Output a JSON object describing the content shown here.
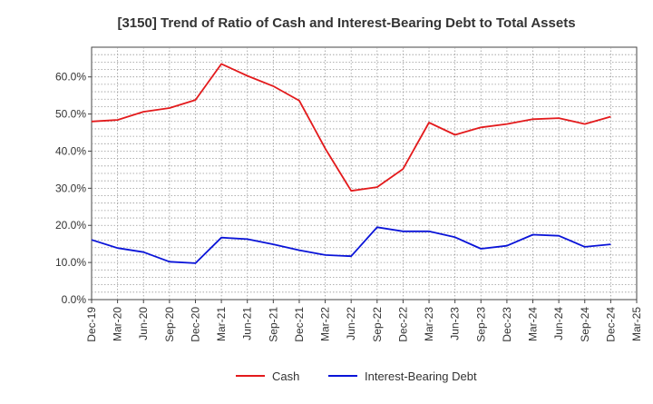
{
  "chart_data": {
    "type": "line",
    "title": "[3150]  Trend of Ratio of Cash and Interest-Bearing Debt to Total Assets",
    "xlabel": "",
    "ylabel": "",
    "x_tick_labels": [
      "Dec-19",
      "Mar-20",
      "Jun-20",
      "Sep-20",
      "Dec-20",
      "Mar-21",
      "Jun-21",
      "Sep-21",
      "Dec-21",
      "Mar-22",
      "Jun-22",
      "Sep-22",
      "Dec-22",
      "Mar-23",
      "Jun-23",
      "Sep-23",
      "Dec-23",
      "Mar-24",
      "Jun-24",
      "Sep-24",
      "Dec-24",
      "Mar-25"
    ],
    "y_tick_labels": [
      "0.0%",
      "10.0%",
      "20.0%",
      "30.0%",
      "40.0%",
      "50.0%",
      "60.0%"
    ],
    "ylim": [
      0,
      68
    ],
    "y_ticks": [
      0,
      10,
      20,
      30,
      40,
      50,
      60
    ],
    "grid": true,
    "legend_position": "bottom-center",
    "series": [
      {
        "name": "Cash",
        "color": "#e31a1c",
        "values": [
          48.0,
          48.4,
          50.6,
          51.6,
          53.8,
          63.5,
          60.3,
          57.5,
          53.6,
          40.7,
          29.3,
          30.3,
          35.2,
          47.7,
          44.4,
          46.4,
          47.3,
          48.6,
          48.9,
          47.3,
          49.3,
          null
        ]
      },
      {
        "name": "Interest-Bearing Debt",
        "color": "#0a14d8",
        "values": [
          16.1,
          13.9,
          12.8,
          10.2,
          9.8,
          16.7,
          16.3,
          14.9,
          13.3,
          12.0,
          11.7,
          19.5,
          18.4,
          18.4,
          16.8,
          13.7,
          14.5,
          17.5,
          17.2,
          14.2,
          14.9,
          null
        ]
      }
    ]
  }
}
